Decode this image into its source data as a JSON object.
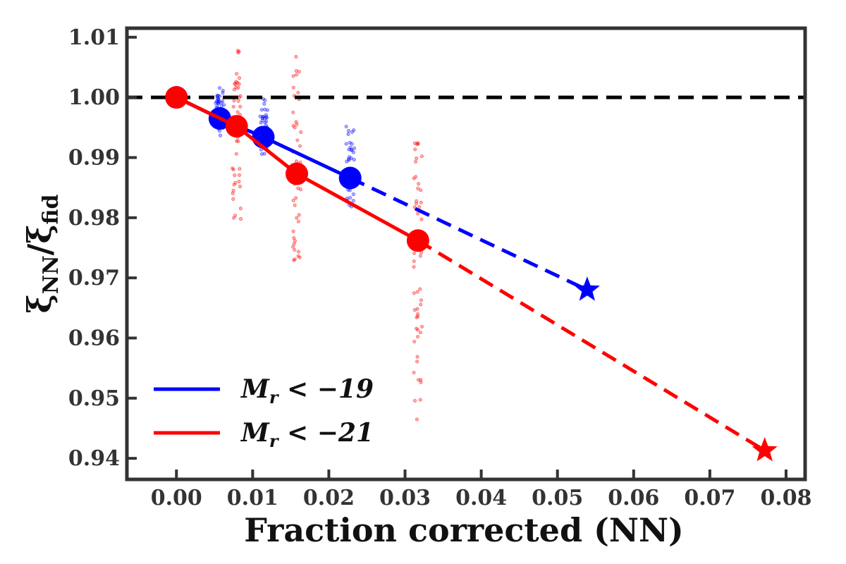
{
  "chart_data": {
    "type": "line",
    "xlabel": "Fraction corrected (NN)",
    "ylabel": "ξNN/ξfid",
    "ylabel_main": "ξ",
    "ylabel_main_sub": "NN",
    "ylabel_slash": "/",
    "ylabel_den": "ξ",
    "ylabel_den_sub": "fid",
    "xlim": [
      -0.0065,
      0.0825
    ],
    "ylim": [
      0.9365,
      1.0115
    ],
    "xticks": [
      0.0,
      0.01,
      0.02,
      0.03,
      0.04,
      0.05,
      0.06,
      0.07,
      0.08
    ],
    "xtick_labels": [
      "0.00",
      "0.01",
      "0.02",
      "0.03",
      "0.04",
      "0.05",
      "0.06",
      "0.07",
      "0.08"
    ],
    "yticks": [
      0.94,
      0.95,
      0.96,
      0.97,
      0.98,
      0.99,
      1.0,
      1.01
    ],
    "ytick_labels": [
      "0.94",
      "0.95",
      "0.96",
      "0.97",
      "0.98",
      "0.99",
      "1.00",
      "1.01"
    ],
    "reference_line": {
      "y": 1.0,
      "style": "dashed",
      "color": "#000000"
    },
    "legend_position": "lower-left",
    "series": [
      {
        "name": "Mr < −19",
        "legend_main": "M",
        "legend_sub": "r",
        "legend_rest": " < −19",
        "color": "#0000ff",
        "x": [
          0.0,
          0.0057,
          0.0114,
          0.0228
        ],
        "y": [
          1.0,
          0.9965,
          0.9934,
          0.9866
        ],
        "extrapolation": {
          "x": 0.0539,
          "y": 0.968
        },
        "scatter_spread": [
          {
            "x": 0.0057,
            "ymin": 0.9935,
            "ymax": 1.0018,
            "n": 40
          },
          {
            "x": 0.0114,
            "ymin": 0.9905,
            "ymax": 0.9998,
            "n": 40
          },
          {
            "x": 0.0228,
            "ymin": 0.9815,
            "ymax": 0.9955,
            "n": 40
          }
        ]
      },
      {
        "name": "Mr < −21",
        "legend_main": "M",
        "legend_sub": "r",
        "legend_rest": " < −21",
        "color": "#ff0000",
        "x": [
          0.0,
          0.0079,
          0.0158,
          0.0317
        ],
        "y": [
          1.0,
          0.9952,
          0.9873,
          0.9762
        ],
        "extrapolation": {
          "x": 0.0772,
          "y": 0.9413
        },
        "scatter_spread": [
          {
            "x": 0.0079,
            "ymin": 0.9785,
            "ymax": 1.0083,
            "n": 45
          },
          {
            "x": 0.0158,
            "ymin": 0.9725,
            "ymax": 1.007,
            "n": 45
          },
          {
            "x": 0.0317,
            "ymin": 0.9462,
            "ymax": 0.9942,
            "n": 55
          }
        ]
      }
    ]
  }
}
